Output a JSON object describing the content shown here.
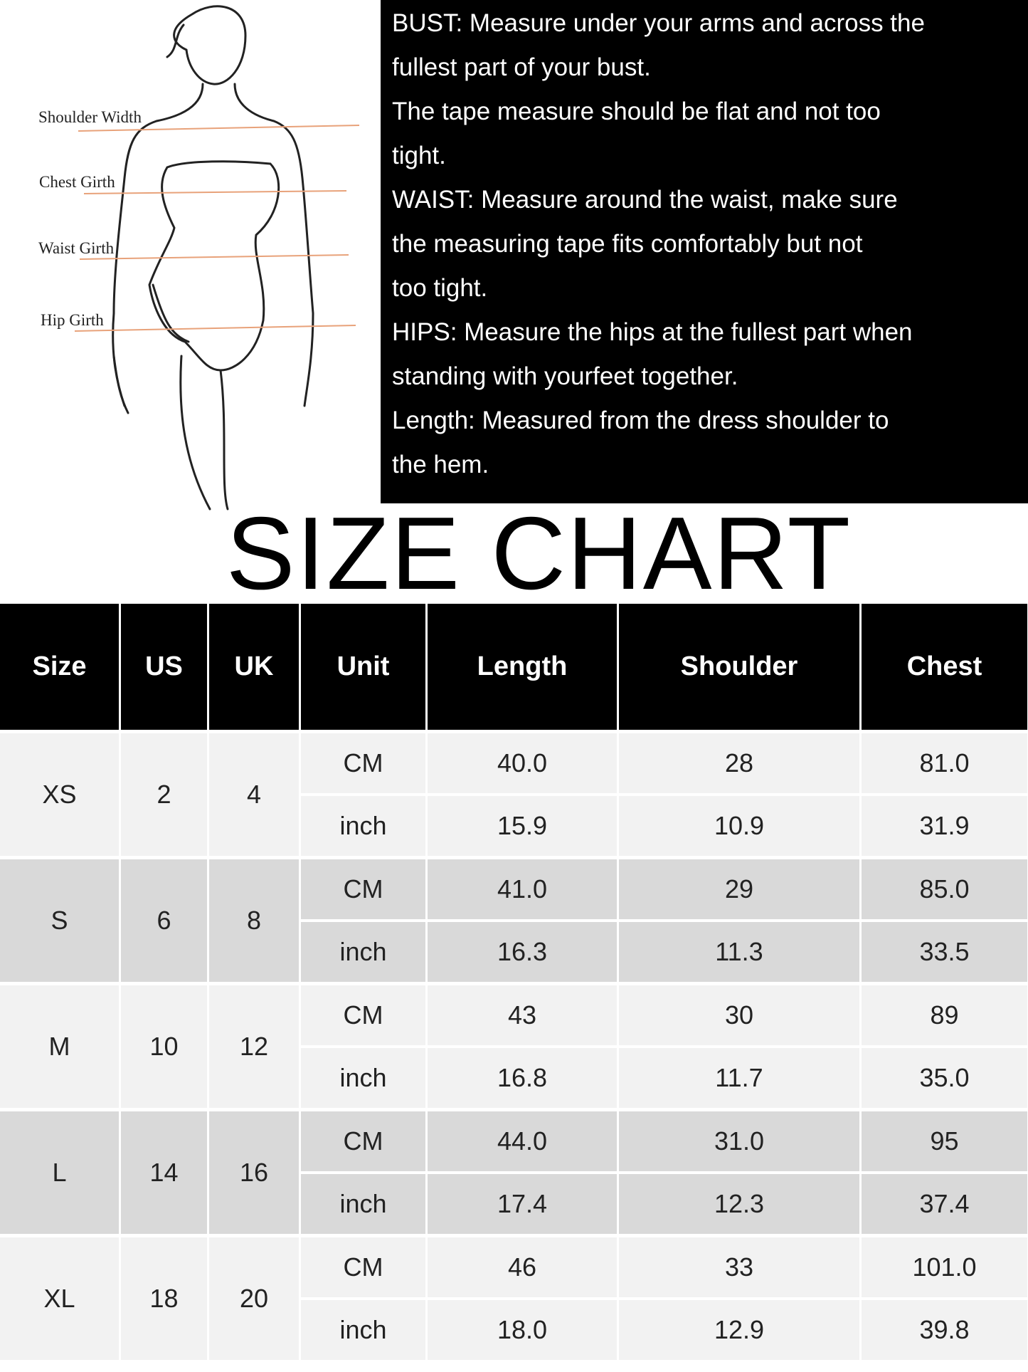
{
  "figure": {
    "labels": [
      "Shoulder Width",
      "Chest Girth",
      "Waist Girth",
      "Hip Girth"
    ],
    "line_color": "#e8a27a"
  },
  "instructions": [
    "BUST: Measure under your arms and across the",
    "fullest part of your bust.",
    "The tape measure should be flat and not too",
    "tight.",
    "WAIST: Measure around the waist, make sure",
    "the measuring tape fits comfortably but not",
    "too tight.",
    "HIPS: Measure the hips at the fullest part when",
    "standing with yourfeet together.",
    "Length: Measured from the dress shoulder to",
    "the hem."
  ],
  "title": "SIZE CHART",
  "table": {
    "headers": [
      "Size",
      "US",
      "UK",
      "Unit",
      "Length",
      "Shoulder",
      "Chest"
    ],
    "rows": [
      {
        "size": "XS",
        "us": "2",
        "uk": "4",
        "cm": [
          "CM",
          "40.0",
          "28",
          "81.0"
        ],
        "inch": [
          "inch",
          "15.9",
          "10.9",
          "31.9"
        ]
      },
      {
        "size": "S",
        "us": "6",
        "uk": "8",
        "cm": [
          "CM",
          "41.0",
          "29",
          "85.0"
        ],
        "inch": [
          "inch",
          "16.3",
          "11.3",
          "33.5"
        ]
      },
      {
        "size": "M",
        "us": "10",
        "uk": "12",
        "cm": [
          "CM",
          "43",
          "30",
          "89"
        ],
        "inch": [
          "inch",
          "16.8",
          "11.7",
          "35.0"
        ]
      },
      {
        "size": "L",
        "us": "14",
        "uk": "16",
        "cm": [
          "CM",
          "44.0",
          "31.0",
          "95"
        ],
        "inch": [
          "inch",
          "17.4",
          "12.3",
          "37.4"
        ]
      },
      {
        "size": "XL",
        "us": "18",
        "uk": "20",
        "cm": [
          "CM",
          "46",
          "33",
          "101.0"
        ],
        "inch": [
          "inch",
          "18.0",
          "12.9",
          "39.8"
        ]
      }
    ]
  }
}
